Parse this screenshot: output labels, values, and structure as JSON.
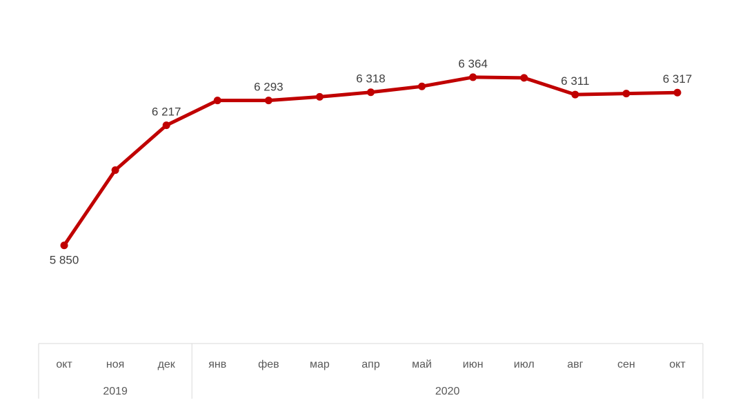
{
  "chart_data": {
    "type": "line",
    "title": "",
    "xlabel": "",
    "ylabel": "",
    "categories": [
      "окт",
      "ноя",
      "дек",
      "янв",
      "фев",
      "мар",
      "апр",
      "май",
      "июн",
      "июл",
      "авг",
      "сен",
      "окт"
    ],
    "groups": [
      {
        "label": "2019",
        "start": 0,
        "end": 2
      },
      {
        "label": "2020",
        "start": 3,
        "end": 12
      }
    ],
    "series": [
      {
        "values": [
          5850,
          6080,
          6217,
          6293,
          6293,
          6304,
          6318,
          6336,
          6364,
          6362,
          6311,
          6314,
          6317
        ]
      }
    ],
    "data_labels": [
      {
        "index": 0,
        "text": "5 850",
        "position": "below"
      },
      {
        "index": 2,
        "text": "6 217",
        "position": "above"
      },
      {
        "index": 4,
        "text": "6 293",
        "position": "above"
      },
      {
        "index": 6,
        "text": "6 318",
        "position": "above"
      },
      {
        "index": 8,
        "text": "6 364",
        "position": "above"
      },
      {
        "index": 10,
        "text": "6 311",
        "position": "above"
      },
      {
        "index": 12,
        "text": "6 317",
        "position": "above"
      }
    ],
    "ylim": [
      5550,
      6600
    ],
    "grid": false,
    "legend": "none",
    "line_color": "#C00000",
    "axis_color": "#D9D9D9"
  }
}
